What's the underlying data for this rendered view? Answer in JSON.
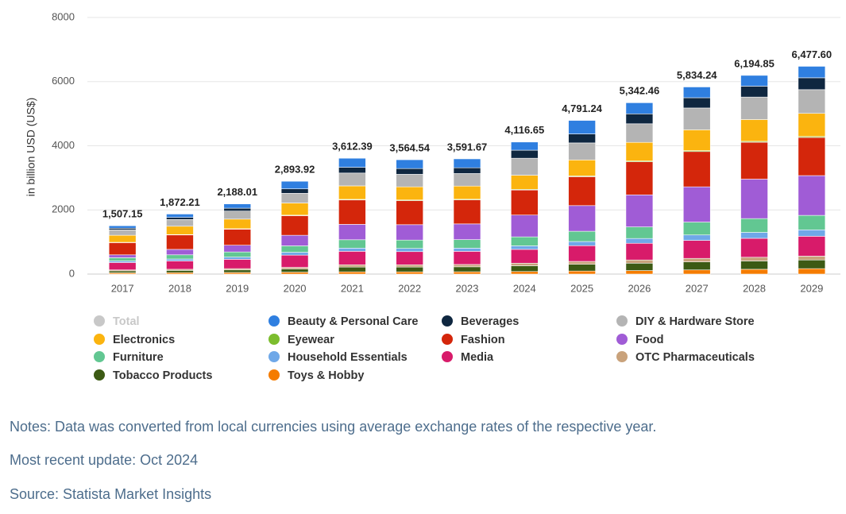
{
  "chart_data": {
    "type": "stacked-bar",
    "y_label": "in billion USD (US$)",
    "categories": [
      "2017",
      "2018",
      "2019",
      "2020",
      "2021",
      "2022",
      "2023",
      "2024",
      "2025",
      "2026",
      "2027",
      "2028",
      "2029"
    ],
    "ylim": [
      0,
      8000
    ],
    "yticks": [
      0,
      2000,
      4000,
      6000,
      8000
    ],
    "grid": true,
    "series": [
      {
        "name": "Total",
        "color": "#c8c8c8",
        "visible": false,
        "values": [
          1507.15,
          1872.21,
          2188.01,
          2893.92,
          3612.39,
          3564.54,
          3591.67,
          4116.65,
          4791.24,
          5342.46,
          5834.24,
          6194.85,
          6477.6
        ],
        "value_labels": [
          "1,507.15",
          "1,872.21",
          "2,188.01",
          "2,893.92",
          "3,612.39",
          "3,564.54",
          "3,591.67",
          "4,116.65",
          "4,791.24",
          "5,342.46",
          "5,834.24",
          "6,194.85",
          "6,477.60"
        ]
      },
      {
        "name": "Beauty & Personal Care",
        "color": "#2f7fe0",
        "values": [
          77,
          105,
          134,
          237,
          282,
          275,
          278,
          255,
          422,
          346,
          336,
          336,
          357.6
        ]
      },
      {
        "name": "Beverages",
        "color": "#0f2740",
        "values": [
          50,
          65,
          90,
          140,
          180,
          180,
          180,
          250,
          280,
          310,
          320,
          340,
          370
        ]
      },
      {
        "name": "DIY & Hardware Store",
        "color": "#b4b4b4",
        "values": [
          170,
          210,
          250,
          300,
          400,
          390,
          390,
          530,
          530,
          580,
          680,
          700,
          740
        ]
      },
      {
        "name": "Electronics",
        "color": "#fbb40f",
        "values": [
          220,
          260,
          300,
          380,
          420,
          410,
          410,
          440,
          500,
          580,
          650,
          680,
          720
        ]
      },
      {
        "name": "Eyewear",
        "color": "#7cbd2e",
        "values": [
          10,
          12,
          14,
          17,
          20,
          20,
          20,
          22,
          24,
          26,
          28,
          29,
          30
        ]
      },
      {
        "name": "Fashion",
        "color": "#d4260b",
        "values": [
          380,
          450,
          500,
          610,
          760,
          750,
          750,
          780,
          900,
          1030,
          1100,
          1150,
          1190
        ]
      },
      {
        "name": "Food",
        "color": "#a05cd6",
        "values": [
          90,
          170,
          210,
          330,
          480,
          480,
          490,
          680,
          800,
          1000,
          1100,
          1230,
          1240
        ]
      },
      {
        "name": "Furniture",
        "color": "#62c792",
        "values": [
          100,
          130,
          160,
          200,
          260,
          260,
          265,
          280,
          320,
          360,
          400,
          430,
          450
        ]
      },
      {
        "name": "Household Essentials",
        "color": "#6fa8e8",
        "values": [
          50,
          60,
          70,
          90,
          100,
          100,
          100,
          110,
          130,
          150,
          170,
          185,
          200
        ]
      },
      {
        "name": "Media",
        "color": "#d81b6a",
        "values": [
          230,
          260,
          290,
          380,
          420,
          410,
          410,
          430,
          490,
          520,
          560,
          590,
          620
        ]
      },
      {
        "name": "OTC Pharmaceuticals",
        "color": "#c9a27b",
        "values": [
          30,
          35,
          40,
          50,
          70,
          70,
          72,
          80,
          90,
          100,
          110,
          115,
          120
        ]
      },
      {
        "name": "Tobacco Products",
        "color": "#3c5a14",
        "values": [
          60,
          70,
          80,
          100,
          150,
          150,
          155,
          180,
          210,
          230,
          250,
          260,
          270
        ]
      },
      {
        "name": "Toys & Hobby",
        "color": "#f57c00",
        "values": [
          40,
          45,
          50,
          60,
          70,
          70,
          72,
          80,
          95,
          110,
          130,
          150,
          170
        ]
      }
    ]
  },
  "notes": [
    "Notes: Data was converted from local currencies using average exchange rates of the respective year.",
    "Most recent update: Oct 2024",
    "Source: Statista Market Insights"
  ]
}
